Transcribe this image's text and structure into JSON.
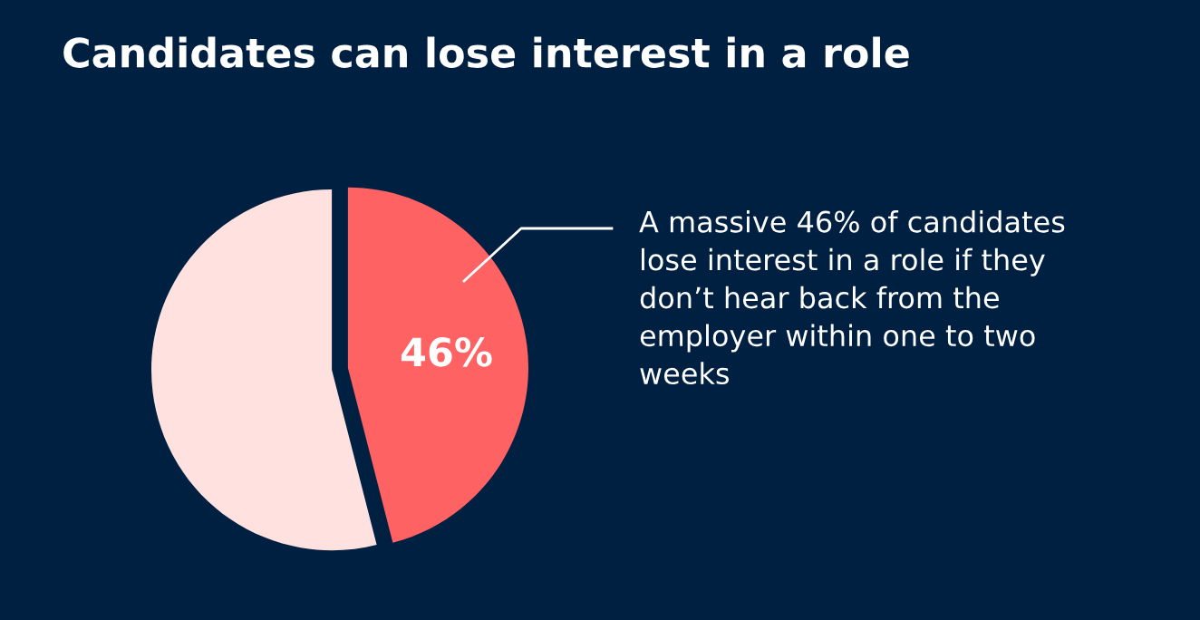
{
  "chart_data": {
    "type": "pie",
    "title": "Candidates can lose interest in a role",
    "categories": [
      null,
      null
    ],
    "values": [
      46,
      54
    ],
    "colors": [
      "#ff6262",
      "#ffe1df"
    ],
    "value_labels": [
      "46%",
      null
    ],
    "legend": false,
    "annotations": [
      "A massive 46% of candidates\nlose interest in a role if they\ndon’t hear back from the\nemployer within one to two\nweeks"
    ]
  }
}
